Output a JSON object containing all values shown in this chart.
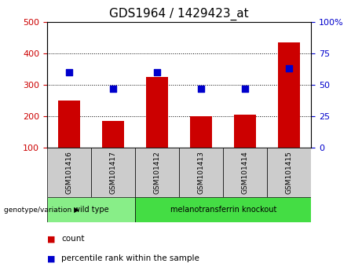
{
  "title": "GDS1964 / 1429423_at",
  "samples": [
    "GSM101416",
    "GSM101417",
    "GSM101412",
    "GSM101413",
    "GSM101414",
    "GSM101415"
  ],
  "counts": [
    250,
    185,
    325,
    200,
    205,
    435
  ],
  "percentiles": [
    60,
    47,
    60,
    47,
    47,
    63
  ],
  "ylim_left": [
    100,
    500
  ],
  "ylim_right": [
    0,
    100
  ],
  "yticks_left": [
    100,
    200,
    300,
    400,
    500
  ],
  "yticks_right": [
    0,
    25,
    50,
    75,
    100
  ],
  "bar_color": "#cc0000",
  "scatter_color": "#0000cc",
  "grid_color": "#000000",
  "groups": [
    {
      "label": "wild type",
      "indices": [
        0,
        1
      ],
      "color": "#88ee88"
    },
    {
      "label": "melanotransferrin knockout",
      "indices": [
        2,
        3,
        4,
        5
      ],
      "color": "#44dd44"
    }
  ],
  "legend": [
    {
      "label": "count",
      "color": "#cc0000"
    },
    {
      "label": "percentile rank within the sample",
      "color": "#0000cc"
    }
  ],
  "bg_color_plot": "#ffffff",
  "bg_color_sample_row": "#cccccc",
  "title_fontsize": 11
}
